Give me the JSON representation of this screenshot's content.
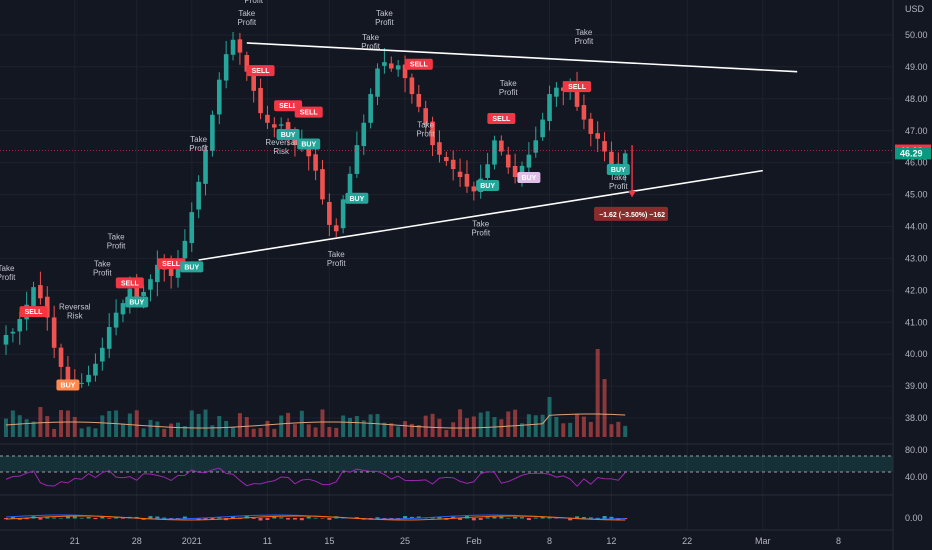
{
  "chart_data": {
    "type": "candlestick",
    "currency": "USD",
    "price_axis": {
      "ylim": [
        37.7,
        50.7
      ],
      "ticks": [
        "50.00",
        "49.00",
        "48.00",
        "47.00",
        "46.00",
        "45.00",
        "44.00",
        "43.00",
        "42.00",
        "41.00",
        "40.00",
        "39.00",
        "38.00"
      ]
    },
    "rsi_axis": {
      "ticks": [
        "80.00",
        "40.00"
      ]
    },
    "macd_axis": {
      "ticks": [
        "0.00"
      ]
    },
    "x_ticks": [
      {
        "label": "21",
        "i": 10
      },
      {
        "label": "28",
        "i": 19
      },
      {
        "label": "2021",
        "i": 27
      },
      {
        "label": "11",
        "i": 38
      },
      {
        "label": "15",
        "i": 47
      },
      {
        "label": "25",
        "i": 58
      },
      {
        "label": "Feb",
        "i": 68
      },
      {
        "label": "8",
        "i": 79
      },
      {
        "label": "12",
        "i": 88
      },
      {
        "label": "22",
        "i": 99
      },
      {
        "label": "Mar",
        "i": 110
      },
      {
        "label": "8",
        "i": 121
      }
    ],
    "last_bar_index": 90,
    "price_labels": [
      {
        "text": "46.38",
        "value": 46.38,
        "color": "#f23645"
      },
      {
        "text": "46.29",
        "value": 46.29,
        "color": "#089981"
      }
    ],
    "trendlines": [
      {
        "from": {
          "i": 35,
          "v": 49.75
        },
        "to": {
          "i": 115,
          "v": 48.85
        },
        "color": "#ffffff"
      },
      {
        "from": {
          "i": 28,
          "v": 42.95
        },
        "to": {
          "i": 110,
          "v": 45.75
        },
        "color": "#ffffff"
      }
    ],
    "closes": [
      40.6,
      40.7,
      41.1,
      41.55,
      42.1,
      41.75,
      41.15,
      40.2,
      39.6,
      39.2,
      39.05,
      39.1,
      39.35,
      39.7,
      40.2,
      40.85,
      41.3,
      41.6,
      42.05,
      41.75,
      41.95,
      42.35,
      42.8,
      42.65,
      42.45,
      42.95,
      43.55,
      44.45,
      45.4,
      46.4,
      47.5,
      48.6,
      49.4,
      49.85,
      49.45,
      48.85,
      48.25,
      47.55,
      47.25,
      47.1,
      47.2,
      46.95,
      46.55,
      46.6,
      46.2,
      45.75,
      44.85,
      44.05,
      43.85,
      44.85,
      45.65,
      46.55,
      47.25,
      48.15,
      48.95,
      49.15,
      48.95,
      49.05,
      48.65,
      48.15,
      47.75,
      47.2,
      46.55,
      46.25,
      46.05,
      45.8,
      45.55,
      45.25,
      45.1,
      45.5,
      45.95,
      46.7,
      46.35,
      45.85,
      45.55,
      45.9,
      46.25,
      46.7,
      47.35,
      48.15,
      48.35,
      48.25,
      48.45,
      47.75,
      47.35,
      46.9,
      46.75,
      46.35,
      45.95,
      45.8,
      46.29
    ],
    "signals": [
      {
        "text": "SELL",
        "i": 4,
        "v": 41.35,
        "color": "#f23645",
        "dir": "above"
      },
      {
        "text": "BUY",
        "i": 9,
        "v": 39.05,
        "color": "#ff8a50",
        "dir": "below"
      },
      {
        "text": "SELL",
        "i": 18,
        "v": 42.25,
        "color": "#f23645",
        "dir": "above"
      },
      {
        "text": "BUY",
        "i": 19,
        "v": 41.65,
        "color": "#26a69a",
        "dir": "below"
      },
      {
        "text": "SELL",
        "i": 24,
        "v": 42.85,
        "color": "#f23645",
        "dir": "above"
      },
      {
        "text": "BUY",
        "i": 27,
        "v": 42.75,
        "color": "#26a69a",
        "dir": "below"
      },
      {
        "text": "SELL",
        "i": 37,
        "v": 48.9,
        "color": "#f23645",
        "dir": "above"
      },
      {
        "text": "SELL",
        "i": 41,
        "v": 47.8,
        "color": "#f23645",
        "dir": "above"
      },
      {
        "text": "BUY",
        "i": 41,
        "v": 46.9,
        "color": "#26a69a",
        "dir": "below"
      },
      {
        "text": "SELL",
        "i": 44,
        "v": 47.6,
        "color": "#f23645",
        "dir": "above"
      },
      {
        "text": "BUY",
        "i": 44,
        "v": 46.6,
        "color": "#26a69a",
        "dir": "below"
      },
      {
        "text": "BUY",
        "i": 51,
        "v": 44.9,
        "color": "#26a69a",
        "dir": "below"
      },
      {
        "text": "SELL",
        "i": 60,
        "v": 49.1,
        "color": "#f23645",
        "dir": "above"
      },
      {
        "text": "BUY",
        "i": 70,
        "v": 45.3,
        "color": "#26a69a",
        "dir": "below"
      },
      {
        "text": "SELL",
        "i": 72,
        "v": 47.4,
        "color": "#f23645",
        "dir": "above"
      },
      {
        "text": "BUY",
        "i": 76,
        "v": 45.55,
        "color": "#e1bee7",
        "dir": "below"
      },
      {
        "text": "SELL",
        "i": 83,
        "v": 48.4,
        "color": "#f23645",
        "dir": "above"
      },
      {
        "text": "BUY",
        "i": 89,
        "v": 45.8,
        "color": "#26a69a",
        "dir": "below"
      }
    ],
    "annotations": [
      {
        "lines": [
          "Take",
          "Profit"
        ],
        "i": 0,
        "v": 42.6
      },
      {
        "lines": [
          "Reversal",
          "Risk"
        ],
        "i": 10,
        "v": 41.4
      },
      {
        "lines": [
          "Take",
          "Profit"
        ],
        "i": 14,
        "v": 42.75
      },
      {
        "lines": [
          "Take",
          "Profit"
        ],
        "i": 16,
        "v": 43.6
      },
      {
        "lines": [
          "Take",
          "Profit"
        ],
        "i": 28,
        "v": 46.65
      },
      {
        "lines": [
          "Profit"
        ],
        "i": 36,
        "v": 51.0
      },
      {
        "lines": [
          "Take",
          "Profit"
        ],
        "i": 35,
        "v": 50.6
      },
      {
        "lines": [
          "Reversal",
          "Risk"
        ],
        "i": 40,
        "v": 46.55
      },
      {
        "lines": [
          "Take",
          "Profit"
        ],
        "i": 48,
        "v": 43.05
      },
      {
        "lines": [
          "Take",
          "Profit"
        ],
        "i": 55,
        "v": 50.6
      },
      {
        "lines": [
          "Take",
          "Profit"
        ],
        "i": 53,
        "v": 49.85
      },
      {
        "lines": [
          "Take",
          "Profit"
        ],
        "i": 61,
        "v": 47.1
      },
      {
        "lines": [
          "Take",
          "Profit"
        ],
        "i": 69,
        "v": 44.0
      },
      {
        "lines": [
          "Take",
          "Profit"
        ],
        "i": 73,
        "v": 48.4
      },
      {
        "lines": [
          "Take",
          "Profit"
        ],
        "i": 84,
        "v": 50.0
      },
      {
        "lines": [
          "Take",
          "Profit"
        ],
        "i": 89,
        "v": 45.45
      }
    ],
    "measurement": {
      "text": "−1.62 (−3.50%) −162",
      "i": 91,
      "from": 46.55,
      "to": 44.93
    }
  }
}
